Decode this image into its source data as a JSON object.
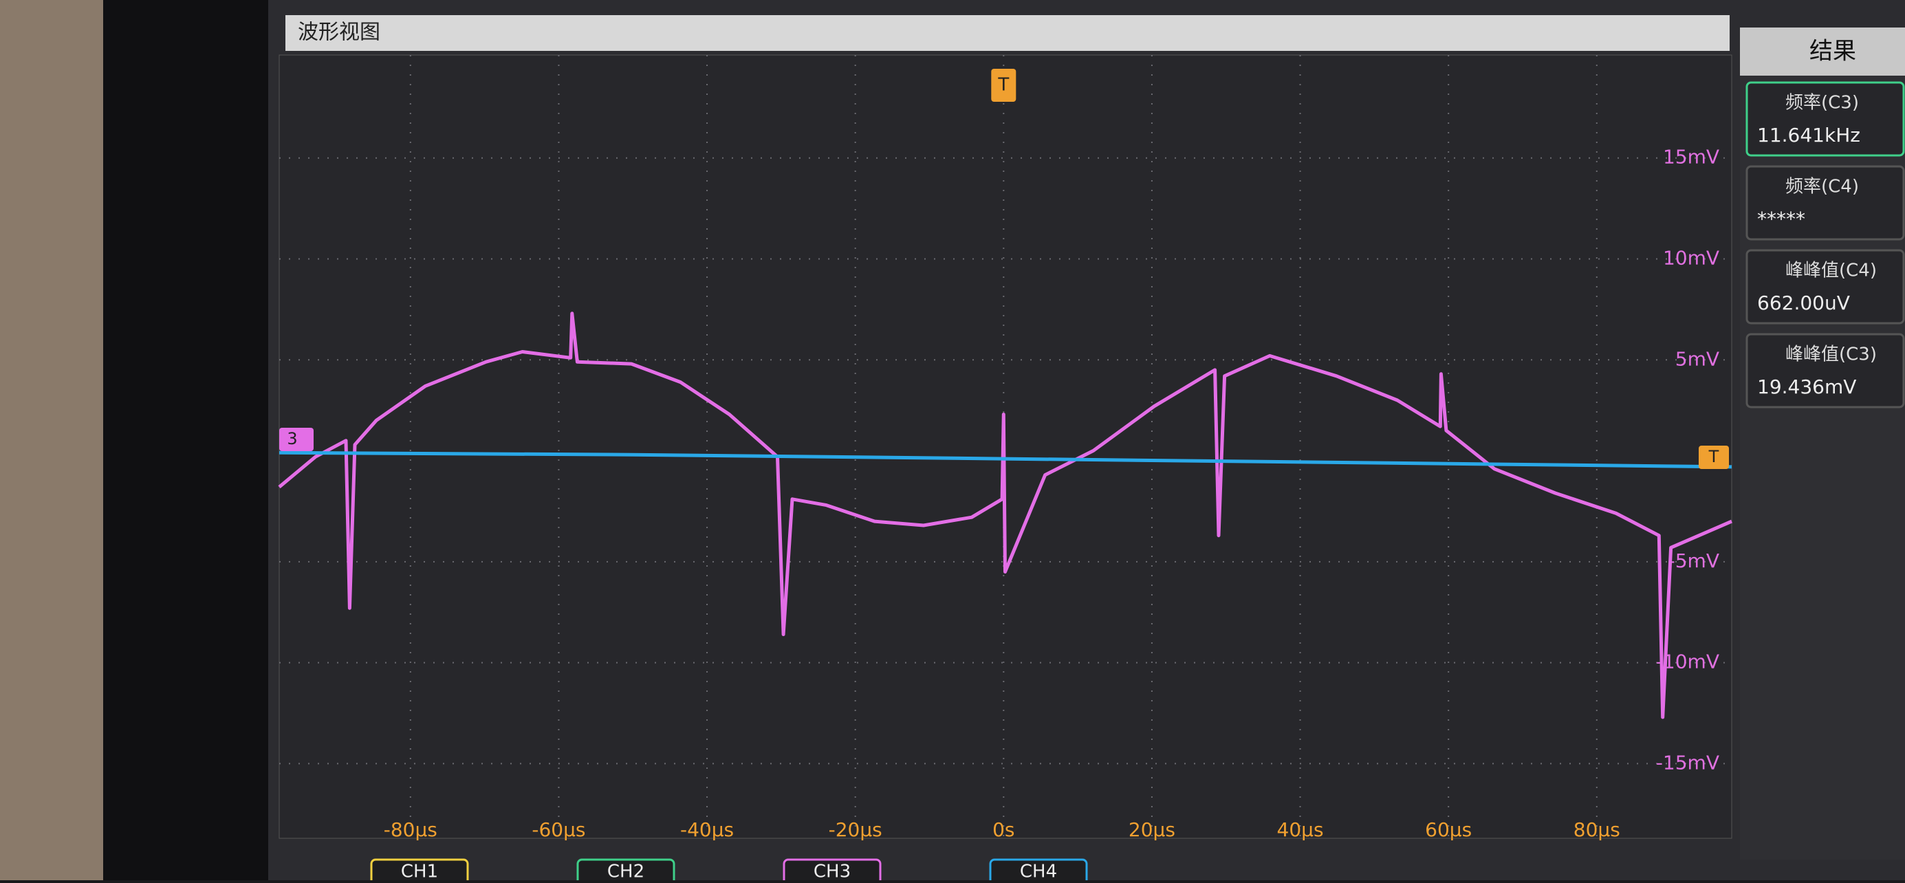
{
  "header": {
    "title": "波形视图"
  },
  "markers": {
    "trigger_top": "T",
    "trigger_level": "T",
    "channel": "3"
  },
  "channel_tabs": [
    "CH1",
    "CH2",
    "CH3",
    "CH4"
  ],
  "results": {
    "title": "结果",
    "items": [
      {
        "label": "频率(C3)",
        "value": "11.641kHz"
      },
      {
        "label": "频率(C4)",
        "value": "*****"
      },
      {
        "label": "峰峰值(C4)",
        "value": "662.00uV"
      },
      {
        "label": "峰峰值(C3)",
        "value": "19.436mV"
      }
    ]
  },
  "chart_data": {
    "type": "line",
    "grid": true,
    "xlim": [
      -97.7,
      98.2
    ],
    "ylim": [
      -18.7,
      20.1
    ],
    "xticks": [
      {
        "value": -80,
        "label": "-80µs"
      },
      {
        "value": -60,
        "label": "-60µs"
      },
      {
        "value": -40,
        "label": "-40µs"
      },
      {
        "value": -20,
        "label": "-20µs"
      },
      {
        "value": 0,
        "label": "0s"
      },
      {
        "value": 20,
        "label": "20µs"
      },
      {
        "value": 40,
        "label": "40µs"
      },
      {
        "value": 60,
        "label": "60µs"
      },
      {
        "value": 80,
        "label": "80µs"
      }
    ],
    "yticks": [
      {
        "value": 15,
        "label": "15mV"
      },
      {
        "value": 10,
        "label": "10mV"
      },
      {
        "value": 5,
        "label": "5mV"
      },
      {
        "value": -5,
        "label": "-5mV"
      },
      {
        "value": -10,
        "label": "-10mV"
      },
      {
        "value": -15,
        "label": "-15mV"
      }
    ],
    "xtick_color": "#f0a030",
    "ytick_color": "#e070e0",
    "series": [
      {
        "color": "#e36ee6",
        "x": [
          -97.7,
          -92.8,
          -88.7,
          -88.2,
          -87.5,
          -84.6,
          -78,
          -69.8,
          -64.9,
          -58.4,
          -58.2,
          -57.5,
          -50.2,
          -43.6,
          -37,
          -30.5,
          -29.7,
          -28.5,
          -23.9,
          -17.4,
          -10.8,
          -4.3,
          -0.2,
          0,
          0.2,
          5.6,
          12.1,
          20.3,
          28.5,
          29,
          29.8,
          35.9,
          44.9,
          53.1,
          58.9,
          59,
          59.7,
          66.2,
          74.4,
          82.6,
          88.4,
          88.9,
          90,
          98.2
        ],
        "values": [
          -1.3,
          0.2,
          1.0,
          -7.3,
          0.8,
          2,
          3.7,
          4.9,
          5.4,
          5.1,
          7.3,
          4.9,
          4.8,
          3.9,
          2.3,
          0.2,
          -8.6,
          -1.9,
          -2.2,
          -3.0,
          -3.2,
          -2.8,
          -1.9,
          2.3,
          -5.5,
          -0.7,
          0.5,
          2.7,
          4.5,
          -3.7,
          4.2,
          5.2,
          4.2,
          3,
          1.7,
          4.3,
          1.5,
          -0.4,
          -1.6,
          -2.6,
          -3.7,
          -12.7,
          -4.3,
          -3.0
        ]
      },
      {
        "color": "#2aa8e8",
        "x": [
          -97.7,
          -50,
          0,
          50,
          98.2
        ],
        "values": [
          0.4,
          0.3,
          0.1,
          -0.1,
          -0.3
        ]
      }
    ]
  }
}
